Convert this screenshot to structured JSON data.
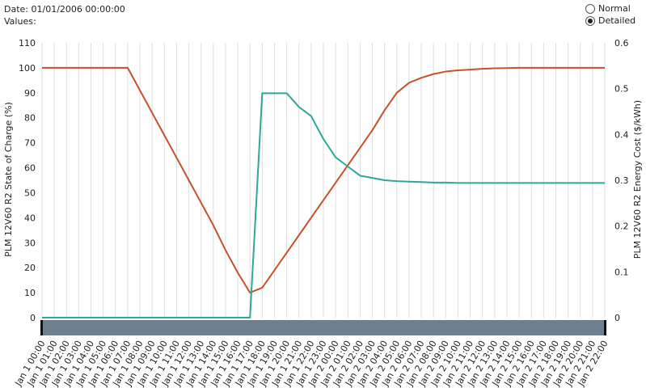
{
  "header": {
    "date_label": "Date:",
    "date_value": "01/01/2006 00:00:00",
    "values_label": "Values:"
  },
  "view_modes": {
    "options": [
      "Normal",
      "Detailed"
    ],
    "selected": "Detailed"
  },
  "chart_data": {
    "type": "line",
    "x": [
      "Jan 1 00:00",
      "Jan 1 01:00",
      "Jan 1 02:00",
      "Jan 1 03:00",
      "Jan 1 04:00",
      "Jan 1 05:00",
      "Jan 1 06:00",
      "Jan 1 07:00",
      "Jan 1 08:00",
      "Jan 1 09:00",
      "Jan 1 10:00",
      "Jan 1 11:00",
      "Jan 1 12:00",
      "Jan 1 13:00",
      "Jan 1 14:00",
      "Jan 1 15:00",
      "Jan 1 16:00",
      "Jan 1 17:00",
      "Jan 1 18:00",
      "Jan 1 19:00",
      "Jan 1 20:00",
      "Jan 1 21:00",
      "Jan 1 22:00",
      "Jan 1 23:00",
      "Jan 2 00:00",
      "Jan 2 01:00",
      "Jan 2 02:00",
      "Jan 2 03:00",
      "Jan 2 04:00",
      "Jan 2 05:00",
      "Jan 2 06:00",
      "Jan 2 07:00",
      "Jan 2 08:00",
      "Jan 2 09:00",
      "Jan 2 10:00",
      "Jan 2 11:00",
      "Jan 2 12:00",
      "Jan 2 13:00",
      "Jan 2 14:00",
      "Jan 2 15:00",
      "Jan 2 16:00",
      "Jan 2 17:00",
      "Jan 2 18:00",
      "Jan 2 19:00",
      "Jan 2 20:00",
      "Jan 2 21:00",
      "Jan 2 22:00"
    ],
    "series": [
      {
        "name": "PLM 12V60 R2 State of Charge (%)",
        "axis": "left",
        "color": "#c8502a",
        "values": [
          100,
          100,
          100,
          100,
          100,
          100,
          100,
          100,
          91,
          82,
          73,
          64,
          55,
          46,
          37,
          27,
          18,
          10,
          12,
          19,
          26,
          33,
          40,
          47,
          54,
          61,
          68,
          75,
          83,
          90,
          94,
          96,
          97.5,
          98.5,
          99,
          99.3,
          99.6,
          99.8,
          99.9,
          100,
          100,
          100,
          100,
          100,
          100,
          100,
          100
        ]
      },
      {
        "name": "PLM 12V60 R2 Energy Cost ($/kWh)",
        "axis": "right",
        "color": "#2fa69a",
        "values": [
          0,
          0,
          0,
          0,
          0,
          0,
          0,
          0,
          0,
          0,
          0,
          0,
          0,
          0,
          0,
          0,
          0,
          0,
          0.49,
          0.49,
          0.49,
          0.46,
          0.44,
          0.39,
          0.35,
          0.33,
          0.31,
          0.305,
          0.3,
          0.298,
          0.297,
          0.296,
          0.295,
          0.295,
          0.294,
          0.294,
          0.294,
          0.294,
          0.294,
          0.294,
          0.294,
          0.294,
          0.294,
          0.294,
          0.294,
          0.294,
          0.294
        ]
      }
    ],
    "y_left": {
      "label": "PLM 12V60 R2 State of Charge (%)",
      "ticks": [
        0,
        10,
        20,
        30,
        40,
        50,
        60,
        70,
        80,
        90,
        100,
        110
      ],
      "range": [
        0,
        110
      ]
    },
    "y_right": {
      "label": "PLM 12V60 R2 Energy Cost ($/kWh)",
      "ticks": [
        "0",
        "0.1",
        "0.2",
        "0.3",
        "0.4",
        "0.5",
        "0.6"
      ],
      "range": [
        0,
        0.6
      ]
    },
    "grid": "vertical",
    "scrollbar_color": "#6e8090"
  }
}
